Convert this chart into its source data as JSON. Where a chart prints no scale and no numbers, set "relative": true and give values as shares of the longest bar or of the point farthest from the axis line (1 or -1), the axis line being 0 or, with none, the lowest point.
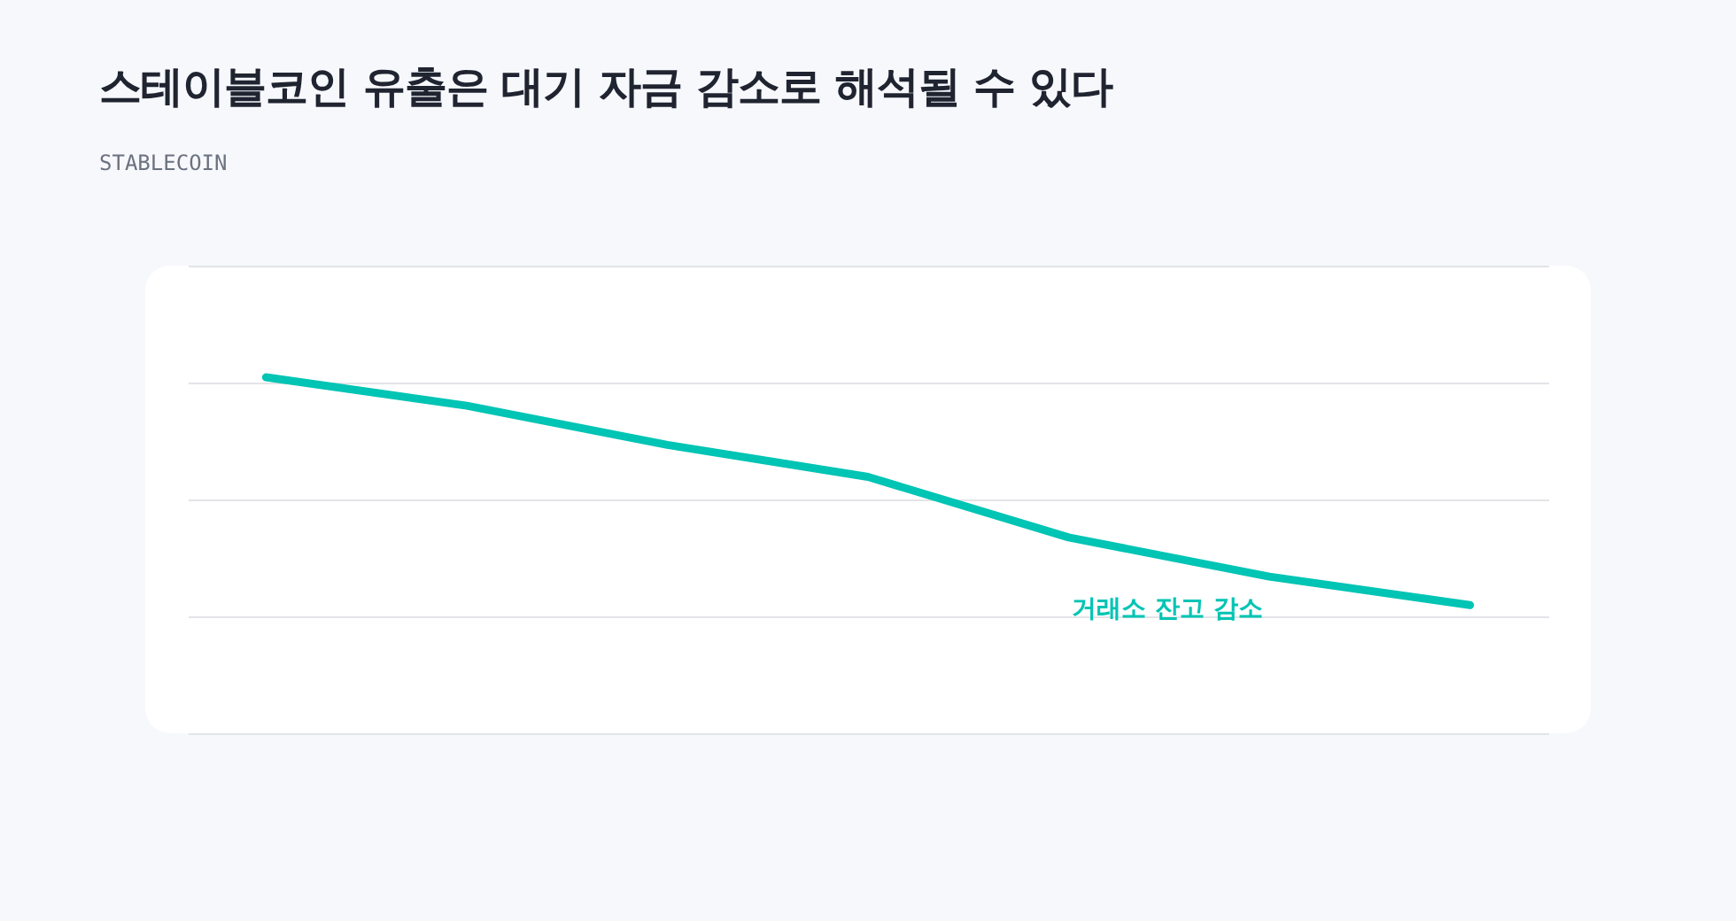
{
  "chart_data": {
    "type": "line",
    "title": "스테이블코인 유출은 대기 자금 감소로 해석될 수 있다",
    "subtitle": "STABLECOIN",
    "categories": [
      null,
      null,
      null,
      null,
      null,
      null,
      null
    ],
    "relative": true,
    "grid": "y",
    "marker": "none",
    "line_style": "solid",
    "series": [
      {
        "color": "#00c4b4",
        "values": [
          1,
          0.92,
          0.81,
          0.72,
          0.55,
          0.44,
          0.36
        ]
      }
    ],
    "annotations": [
      "거래소 잔고 감소"
    ]
  }
}
